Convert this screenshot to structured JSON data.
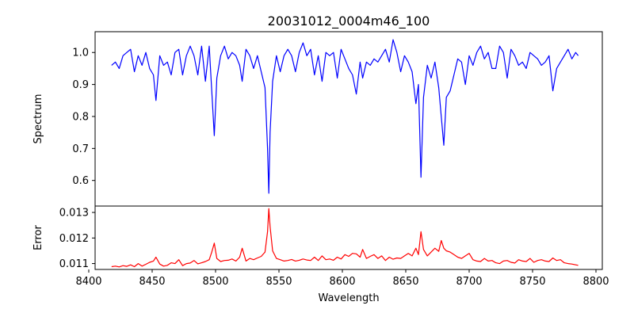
{
  "chart_data": [
    {
      "type": "line",
      "title": "20031012_0004m46_100",
      "xlabel": "",
      "ylabel": "Spectrum",
      "xlim": [
        8405,
        8805
      ],
      "ylim": [
        0.52,
        1.065
      ],
      "yticks": [
        0.6,
        0.7,
        0.8,
        0.9,
        1.0
      ],
      "ytick_labels": [
        "0.6",
        "0.7",
        "0.8",
        "0.9",
        "1.0"
      ],
      "grid": false,
      "series": [
        {
          "color": "#0000ff",
          "x": [
            8418,
            8421,
            8424,
            8427,
            8430,
            8433,
            8436,
            8439,
            8442,
            8445,
            8448,
            8451,
            8453,
            8456,
            8459,
            8462,
            8465,
            8468,
            8471,
            8474,
            8477,
            8480,
            8483,
            8486,
            8489,
            8492,
            8495,
            8497,
            8499,
            8501,
            8504,
            8507,
            8510,
            8513,
            8516,
            8519,
            8521,
            8524,
            8527,
            8530,
            8533,
            8536,
            8539,
            8541,
            8542,
            8543,
            8545,
            8548,
            8551,
            8554,
            8557,
            8560,
            8563,
            8566,
            8569,
            8572,
            8575,
            8578,
            8581,
            8584,
            8587,
            8590,
            8593,
            8596,
            8599,
            8602,
            8605,
            8608,
            8611,
            8614,
            8616,
            8619,
            8622,
            8625,
            8628,
            8631,
            8634,
            8637,
            8640,
            8643,
            8646,
            8649,
            8652,
            8655,
            8658,
            8660,
            8662,
            8664,
            8667,
            8670,
            8673,
            8676,
            8678,
            8680,
            8682,
            8685,
            8688,
            8691,
            8694,
            8697,
            8700,
            8703,
            8706,
            8709,
            8712,
            8715,
            8718,
            8721,
            8724,
            8727,
            8730,
            8733,
            8736,
            8739,
            8742,
            8745,
            8748,
            8751,
            8754,
            8757,
            8760,
            8763,
            8766,
            8769,
            8772,
            8775,
            8778,
            8781,
            8784,
            8786
          ],
          "y": [
            0.96,
            0.97,
            0.95,
            0.99,
            1.0,
            1.01,
            0.94,
            0.99,
            0.96,
            1.0,
            0.95,
            0.93,
            0.85,
            0.99,
            0.96,
            0.97,
            0.93,
            1.0,
            1.01,
            0.93,
            0.99,
            1.02,
            0.99,
            0.93,
            1.02,
            0.91,
            1.02,
            0.88,
            0.74,
            0.92,
            0.99,
            1.02,
            0.98,
            1.0,
            0.99,
            0.96,
            0.91,
            1.01,
            0.99,
            0.95,
            0.99,
            0.94,
            0.89,
            0.7,
            0.56,
            0.75,
            0.91,
            0.99,
            0.94,
            0.99,
            1.01,
            0.99,
            0.94,
            1.0,
            1.03,
            0.99,
            1.01,
            0.93,
            0.99,
            0.91,
            1.0,
            0.99,
            1.0,
            0.92,
            1.01,
            0.98,
            0.95,
            0.93,
            0.87,
            0.97,
            0.92,
            0.97,
            0.96,
            0.98,
            0.97,
            0.99,
            1.01,
            0.97,
            1.04,
            1.0,
            0.94,
            0.99,
            0.97,
            0.94,
            0.84,
            0.9,
            0.61,
            0.86,
            0.96,
            0.92,
            0.97,
            0.89,
            0.8,
            0.71,
            0.86,
            0.88,
            0.93,
            0.98,
            0.97,
            0.9,
            0.99,
            0.96,
            1.0,
            1.02,
            0.98,
            1.0,
            0.95,
            0.95,
            1.02,
            1.0,
            0.92,
            1.01,
            0.99,
            0.96,
            0.97,
            0.95,
            1.0,
            0.99,
            0.98,
            0.96,
            0.97,
            0.99,
            0.88,
            0.95,
            0.97,
            0.99,
            1.01,
            0.98,
            1.0,
            0.99
          ]
        }
      ]
    },
    {
      "type": "line",
      "title": "",
      "xlabel": "Wavelength",
      "ylabel": "Error",
      "xlim": [
        8405,
        8805
      ],
      "ylim": [
        0.01077,
        0.01325
      ],
      "xticks": [
        8400,
        8450,
        8500,
        8550,
        8600,
        8650,
        8700,
        8750,
        8800
      ],
      "xtick_labels": [
        "8400",
        "8450",
        "8500",
        "8550",
        "8600",
        "8650",
        "8700",
        "8750",
        "8800"
      ],
      "yticks": [
        0.011,
        0.012,
        0.013
      ],
      "ytick_labels": [
        "0.011",
        "0.012",
        "0.013"
      ],
      "grid": false,
      "series": [
        {
          "color": "#ff0000",
          "x": [
            8418,
            8421,
            8424,
            8427,
            8430,
            8433,
            8436,
            8439,
            8442,
            8445,
            8448,
            8451,
            8453,
            8456,
            8459,
            8462,
            8465,
            8468,
            8471,
            8474,
            8477,
            8480,
            8483,
            8486,
            8489,
            8492,
            8495,
            8497,
            8499,
            8501,
            8504,
            8507,
            8510,
            8513,
            8516,
            8519,
            8521,
            8524,
            8527,
            8530,
            8533,
            8536,
            8539,
            8541,
            8542,
            8543,
            8545,
            8548,
            8551,
            8554,
            8557,
            8560,
            8563,
            8566,
            8569,
            8572,
            8575,
            8578,
            8581,
            8584,
            8587,
            8590,
            8593,
            8596,
            8599,
            8602,
            8605,
            8608,
            8611,
            8614,
            8616,
            8619,
            8622,
            8625,
            8628,
            8631,
            8634,
            8637,
            8640,
            8643,
            8646,
            8649,
            8652,
            8655,
            8658,
            8660,
            8662,
            8664,
            8667,
            8670,
            8673,
            8676,
            8678,
            8680,
            8682,
            8685,
            8688,
            8691,
            8694,
            8697,
            8700,
            8703,
            8706,
            8709,
            8712,
            8715,
            8718,
            8721,
            8724,
            8727,
            8730,
            8733,
            8736,
            8739,
            8742,
            8745,
            8748,
            8751,
            8754,
            8757,
            8760,
            8763,
            8766,
            8769,
            8772,
            8775,
            8778,
            8781,
            8784,
            8786
          ],
          "y": [
            0.01088,
            0.0109,
            0.01087,
            0.01092,
            0.01089,
            0.01095,
            0.01088,
            0.011,
            0.0109,
            0.01097,
            0.01105,
            0.0111,
            0.01125,
            0.01098,
            0.0109,
            0.01093,
            0.01103,
            0.011,
            0.01115,
            0.01092,
            0.011,
            0.01102,
            0.01112,
            0.01099,
            0.01103,
            0.01108,
            0.01115,
            0.01145,
            0.0118,
            0.0112,
            0.01108,
            0.01112,
            0.01113,
            0.01118,
            0.0111,
            0.01125,
            0.0116,
            0.0111,
            0.0112,
            0.01115,
            0.01122,
            0.01128,
            0.01145,
            0.01225,
            0.01315,
            0.01245,
            0.0115,
            0.0112,
            0.01115,
            0.0111,
            0.01112,
            0.01116,
            0.0111,
            0.01113,
            0.01118,
            0.01114,
            0.01112,
            0.01125,
            0.01112,
            0.0113,
            0.01115,
            0.01118,
            0.01113,
            0.01125,
            0.01118,
            0.01135,
            0.01128,
            0.0114,
            0.01138,
            0.01125,
            0.01155,
            0.0112,
            0.01128,
            0.01135,
            0.0112,
            0.0113,
            0.01112,
            0.01125,
            0.01117,
            0.01122,
            0.0112,
            0.0113,
            0.0114,
            0.0113,
            0.0116,
            0.01135,
            0.01225,
            0.01155,
            0.0113,
            0.01145,
            0.0116,
            0.01148,
            0.0119,
            0.0116,
            0.0115,
            0.01145,
            0.01135,
            0.01125,
            0.0112,
            0.0113,
            0.0114,
            0.01115,
            0.0111,
            0.01108,
            0.0112,
            0.0111,
            0.01112,
            0.01103,
            0.011,
            0.0111,
            0.01112,
            0.01105,
            0.01102,
            0.01115,
            0.0111,
            0.01108,
            0.0112,
            0.01105,
            0.01112,
            0.01115,
            0.0111,
            0.01108,
            0.01122,
            0.01112,
            0.01115,
            0.01103,
            0.011,
            0.01098,
            0.01095,
            0.01093
          ]
        }
      ]
    }
  ]
}
